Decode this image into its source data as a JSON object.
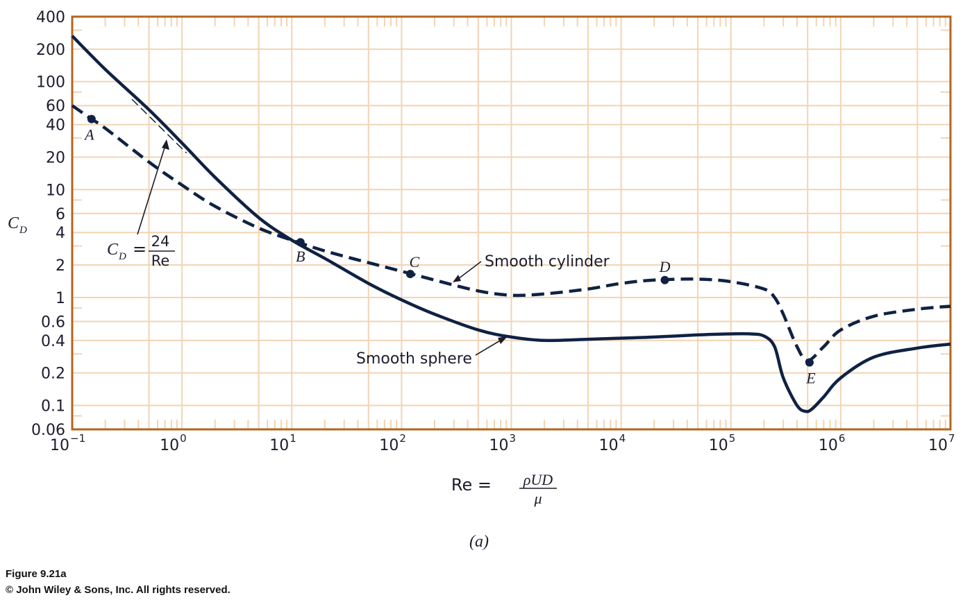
{
  "chart_data": {
    "type": "line",
    "x_scale": "log",
    "y_scale": "log",
    "xlim": [
      0.1,
      10000000
    ],
    "ylim": [
      0.06,
      400
    ],
    "grid": true,
    "xlabel": "Re =",
    "xlabel_fraction": {
      "numerator": "ρUD",
      "denominator": "μ"
    },
    "ylabel": {
      "main": "C",
      "sub": "D"
    },
    "x_ticks": [
      {
        "value": 0.1,
        "base": "10",
        "exp": "−1"
      },
      {
        "value": 1,
        "base": "10",
        "exp": "0"
      },
      {
        "value": 10,
        "base": "10",
        "exp": "1"
      },
      {
        "value": 100,
        "base": "10",
        "exp": "2"
      },
      {
        "value": 1000,
        "base": "10",
        "exp": "3"
      },
      {
        "value": 10000,
        "base": "10",
        "exp": "4"
      },
      {
        "value": 100000,
        "base": "10",
        "exp": "5"
      },
      {
        "value": 1000000,
        "base": "10",
        "exp": "6"
      },
      {
        "value": 10000000,
        "base": "10",
        "exp": "7"
      }
    ],
    "y_ticks": [
      {
        "value": 400,
        "label": "400"
      },
      {
        "value": 200,
        "label": "200"
      },
      {
        "value": 100,
        "label": "100"
      },
      {
        "value": 60,
        "label": "60"
      },
      {
        "value": 40,
        "label": "40"
      },
      {
        "value": 20,
        "label": "20"
      },
      {
        "value": 10,
        "label": "10"
      },
      {
        "value": 6,
        "label": "6"
      },
      {
        "value": 4,
        "label": "4"
      },
      {
        "value": 2,
        "label": "2"
      },
      {
        "value": 1,
        "label": "1"
      },
      {
        "value": 0.6,
        "label": "0.6"
      },
      {
        "value": 0.4,
        "label": "0.4"
      },
      {
        "value": 0.2,
        "label": "0.2"
      },
      {
        "value": 0.1,
        "label": "0.1"
      },
      {
        "value": 0.06,
        "label": "0.06"
      }
    ],
    "series": [
      {
        "name": "Smooth sphere",
        "style": "solid",
        "points": [
          [
            0.1,
            265
          ],
          [
            0.2,
            130
          ],
          [
            0.5,
            55
          ],
          [
            1,
            27
          ],
          [
            2,
            13
          ],
          [
            5,
            5.5
          ],
          [
            10,
            3.4
          ],
          [
            20,
            2.3
          ],
          [
            50,
            1.35
          ],
          [
            100,
            0.95
          ],
          [
            200,
            0.7
          ],
          [
            500,
            0.5
          ],
          [
            1000,
            0.43
          ],
          [
            2000,
            0.4
          ],
          [
            5000,
            0.41
          ],
          [
            10000,
            0.42
          ],
          [
            20000,
            0.43
          ],
          [
            50000,
            0.45
          ],
          [
            100000,
            0.46
          ],
          [
            150000,
            0.46
          ],
          [
            200000,
            0.44
          ],
          [
            250000,
            0.35
          ],
          [
            300000,
            0.18
          ],
          [
            400000,
            0.1
          ],
          [
            480000,
            0.088
          ],
          [
            550000,
            0.093
          ],
          [
            700000,
            0.12
          ],
          [
            1000000,
            0.18
          ],
          [
            2000000,
            0.28
          ],
          [
            5000000,
            0.34
          ],
          [
            10000000,
            0.37
          ]
        ]
      },
      {
        "name": "Smooth cylinder",
        "style": "dashed",
        "points": [
          [
            0.1,
            60
          ],
          [
            0.15,
            45
          ],
          [
            0.2,
            37
          ],
          [
            0.5,
            18
          ],
          [
            1,
            11
          ],
          [
            2,
            7
          ],
          [
            5,
            4.4
          ],
          [
            10,
            3.4
          ],
          [
            20,
            2.7
          ],
          [
            50,
            2.1
          ],
          [
            100,
            1.75
          ],
          [
            200,
            1.45
          ],
          [
            500,
            1.15
          ],
          [
            1000,
            1.05
          ],
          [
            2000,
            1.08
          ],
          [
            5000,
            1.2
          ],
          [
            10000,
            1.35
          ],
          [
            20000,
            1.45
          ],
          [
            50000,
            1.48
          ],
          [
            100000,
            1.4
          ],
          [
            200000,
            1.2
          ],
          [
            250000,
            1.0
          ],
          [
            300000,
            0.7
          ],
          [
            400000,
            0.35
          ],
          [
            500000,
            0.26
          ],
          [
            700000,
            0.35
          ],
          [
            1000000,
            0.5
          ],
          [
            2000000,
            0.67
          ],
          [
            5000000,
            0.78
          ],
          [
            10000000,
            0.83
          ]
        ]
      },
      {
        "name": "C_D = 24/Re",
        "style": "thin-dashed",
        "points": [
          [
            0.35,
            68.6
          ],
          [
            1.1,
            21.8
          ]
        ]
      }
    ],
    "points": [
      {
        "label": "A",
        "x": 0.15,
        "y": 45
      },
      {
        "label": "B",
        "x": 12,
        "y": 3.25
      },
      {
        "label": "C",
        "x": 120,
        "y": 1.65
      },
      {
        "label": "D",
        "x": 25000,
        "y": 1.45
      },
      {
        "label": "E",
        "x": 520000,
        "y": 0.25
      }
    ],
    "annotations": {
      "stokes": {
        "lhs_main": "C",
        "lhs_sub": "D",
        "eq": "=",
        "numerator": "24",
        "denominator": "Re"
      },
      "sphere_label": "Smooth sphere",
      "cylinder_label": "Smooth cylinder"
    },
    "subfigure_label": "(a)",
    "colors": {
      "curve": "#0f2244",
      "grid": "#f2d4b4",
      "frame": "#b5651d",
      "text": "#1c1c2c"
    }
  },
  "caption": {
    "figure": "Figure 9.21a",
    "copyright": "© John Wiley & Sons, Inc. All rights reserved."
  }
}
